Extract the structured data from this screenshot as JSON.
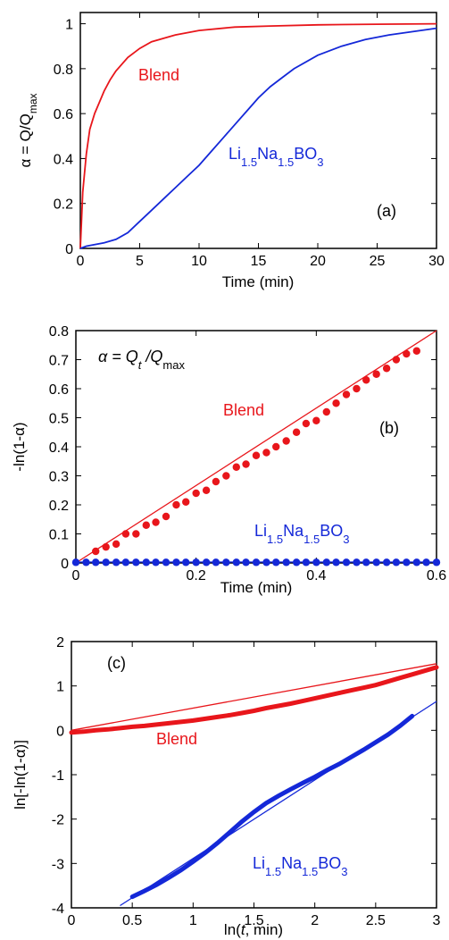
{
  "chart_data": [
    {
      "type": "line",
      "panel_label": "(a)",
      "xlabel": "Time (min)",
      "ylabel_parts": [
        "α = Q/Q",
        "max"
      ],
      "xlim": [
        0,
        30
      ],
      "ylim": [
        0,
        1.05
      ],
      "xticks": [
        "0",
        "5",
        "10",
        "15",
        "20",
        "25",
        "30"
      ],
      "xtick_values": [
        0,
        5,
        10,
        15,
        20,
        25,
        30
      ],
      "yticks": [
        "0",
        "0.2",
        "0.4",
        "0.6",
        "0.8",
        "1"
      ],
      "ytick_values": [
        0,
        0.2,
        0.4,
        0.6,
        0.8,
        1
      ],
      "colors": {
        "blend": "#e8161b",
        "li": "#1428d8"
      },
      "annotations": {
        "blend": "Blend",
        "li": {
          "a": "Li",
          "b": "1.5",
          "c": "Na",
          "d": "1.5",
          "e": "BO",
          "f": "3"
        }
      },
      "series": [
        {
          "x": [
            0,
            0.2,
            0.5,
            0.8,
            1.2,
            1.6,
            2,
            2.5,
            3,
            4,
            5,
            6,
            8,
            10,
            13,
            16,
            20,
            25,
            30
          ],
          "y": [
            0,
            0.25,
            0.42,
            0.53,
            0.6,
            0.65,
            0.7,
            0.75,
            0.79,
            0.85,
            0.89,
            0.92,
            0.95,
            0.97,
            0.985,
            0.99,
            0.995,
            0.998,
            1.0
          ]
        },
        {
          "x": [
            0,
            0.5,
            1,
            2,
            3,
            4,
            5,
            6,
            7,
            8,
            9,
            10,
            11,
            12,
            13,
            14,
            15,
            16,
            17,
            18,
            20,
            22,
            24,
            26,
            28,
            30
          ],
          "y": [
            0,
            0.01,
            0.015,
            0.025,
            0.04,
            0.07,
            0.12,
            0.17,
            0.22,
            0.27,
            0.32,
            0.37,
            0.43,
            0.49,
            0.55,
            0.61,
            0.67,
            0.72,
            0.76,
            0.8,
            0.86,
            0.9,
            0.93,
            0.95,
            0.965,
            0.98
          ]
        }
      ]
    },
    {
      "type": "scatter",
      "panel_label": "(b)",
      "xlabel": "Time (min)",
      "ylabel": "-ln(1-α)",
      "equation": {
        "a": "α = Q",
        "b": "t",
        "c": " /Q",
        "d": "max"
      },
      "xlim": [
        0,
        0.6
      ],
      "ylim": [
        0,
        0.8
      ],
      "xticks": [
        "0",
        "0.2",
        "0.4",
        "0.6"
      ],
      "xtick_values": [
        0,
        0.2,
        0.4,
        0.6
      ],
      "yticks": [
        "0",
        "0.1",
        "0.2",
        "0.3",
        "0.4",
        "0.5",
        "0.6",
        "0.7",
        "0.8"
      ],
      "ytick_values": [
        0,
        0.1,
        0.2,
        0.3,
        0.4,
        0.5,
        0.6,
        0.7,
        0.8
      ],
      "colors": {
        "blend": "#e8161b",
        "li": "#1428d8"
      },
      "annotations": {
        "blend": "Blend",
        "li": {
          "a": "Li",
          "b": "1.5",
          "c": "Na",
          "d": "1.5",
          "e": "BO",
          "f": "3"
        }
      },
      "series": [
        {
          "x": [
            0.033,
            0.05,
            0.067,
            0.083,
            0.1,
            0.117,
            0.133,
            0.15,
            0.167,
            0.183,
            0.2,
            0.217,
            0.233,
            0.25,
            0.267,
            0.283,
            0.3,
            0.317,
            0.333,
            0.35,
            0.367,
            0.383,
            0.4,
            0.417,
            0.433,
            0.45,
            0.467,
            0.483,
            0.5,
            0.517,
            0.533,
            0.55,
            0.567
          ],
          "y": [
            0.04,
            0.055,
            0.065,
            0.1,
            0.1,
            0.13,
            0.14,
            0.16,
            0.2,
            0.21,
            0.24,
            0.25,
            0.28,
            0.3,
            0.33,
            0.34,
            0.37,
            0.38,
            0.4,
            0.42,
            0.45,
            0.48,
            0.49,
            0.52,
            0.55,
            0.58,
            0.6,
            0.63,
            0.65,
            0.67,
            0.7,
            0.72,
            0.73
          ]
        },
        {
          "x": [
            0,
            0.017,
            0.033,
            0.05,
            0.067,
            0.083,
            0.1,
            0.117,
            0.133,
            0.15,
            0.167,
            0.183,
            0.2,
            0.217,
            0.233,
            0.25,
            0.267,
            0.283,
            0.3,
            0.317,
            0.333,
            0.35,
            0.367,
            0.383,
            0.4,
            0.417,
            0.433,
            0.45,
            0.467,
            0.483,
            0.5,
            0.517,
            0.533,
            0.55,
            0.567,
            0.583,
            0.6
          ],
          "y": [
            0.002,
            0.002,
            0.002,
            0.002,
            0.002,
            0.002,
            0.002,
            0.002,
            0.002,
            0.002,
            0.002,
            0.002,
            0.002,
            0.002,
            0.002,
            0.002,
            0.002,
            0.002,
            0.002,
            0.002,
            0.002,
            0.002,
            0.002,
            0.002,
            0.002,
            0.002,
            0.002,
            0.002,
            0.002,
            0.002,
            0.002,
            0.002,
            0.002,
            0.002,
            0.002,
            0.002,
            0.002
          ]
        }
      ],
      "fits": [
        {
          "x": [
            0,
            0.6
          ],
          "y": [
            0,
            0.8
          ]
        },
        {
          "x": [
            0,
            0.6
          ],
          "y": [
            0.003,
            0.003
          ]
        }
      ]
    },
    {
      "type": "scatter",
      "panel_label": "(c)",
      "xlabel_parts": [
        "ln(",
        "t",
        ", min)"
      ],
      "ylabel": "ln[-ln(1-α)]",
      "xlim": [
        0,
        3
      ],
      "ylim": [
        -4,
        2
      ],
      "xticks": [
        "0",
        "0.5",
        "1",
        "1.5",
        "2",
        "2.5",
        "3"
      ],
      "xtick_values": [
        0,
        0.5,
        1,
        1.5,
        2,
        2.5,
        3
      ],
      "yticks": [
        "-4",
        "-3",
        "-2",
        "-1",
        "0",
        "1",
        "2"
      ],
      "ytick_values": [
        -4,
        -3,
        -2,
        -1,
        0,
        1,
        2
      ],
      "colors": {
        "blend": "#e8161b",
        "li": "#1428d8"
      },
      "annotations": {
        "blend": "Blend",
        "li": {
          "a": "Li",
          "b": "1.5",
          "c": "Na",
          "d": "1.5",
          "e": "BO",
          "f": "3"
        }
      },
      "series": [
        {
          "x": [
            0,
            0.1,
            0.2,
            0.3,
            0.4,
            0.5,
            0.6,
            0.7,
            0.8,
            0.9,
            1,
            1.1,
            1.2,
            1.3,
            1.4,
            1.5,
            1.6,
            1.7,
            1.8,
            1.9,
            2,
            2.1,
            2.2,
            2.3,
            2.4,
            2.5,
            2.6,
            2.7,
            2.8,
            2.9,
            3
          ],
          "y": [
            -0.05,
            -0.03,
            0,
            0.02,
            0.05,
            0.08,
            0.1,
            0.13,
            0.16,
            0.19,
            0.22,
            0.26,
            0.3,
            0.34,
            0.39,
            0.44,
            0.5,
            0.55,
            0.6,
            0.66,
            0.72,
            0.78,
            0.84,
            0.9,
            0.96,
            1.02,
            1.1,
            1.18,
            1.26,
            1.34,
            1.42
          ]
        },
        {
          "x": [
            0.5,
            0.6,
            0.7,
            0.8,
            0.9,
            1,
            1.1,
            1.2,
            1.3,
            1.4,
            1.5,
            1.6,
            1.7,
            1.8,
            1.9,
            2,
            2.1,
            2.2,
            2.3,
            2.4,
            2.5,
            2.6,
            2.7,
            2.8
          ],
          "y": [
            -3.75,
            -3.62,
            -3.48,
            -3.32,
            -3.15,
            -2.96,
            -2.76,
            -2.54,
            -2.3,
            -2.06,
            -1.84,
            -1.64,
            -1.48,
            -1.33,
            -1.19,
            -1.05,
            -0.9,
            -0.76,
            -0.6,
            -0.44,
            -0.27,
            -0.1,
            0.1,
            0.32
          ]
        }
      ],
      "fits": [
        {
          "x": [
            0,
            3
          ],
          "y": [
            0,
            1.5
          ]
        },
        {
          "x": [
            0.4,
            3
          ],
          "y": [
            -3.95,
            0.65
          ]
        }
      ]
    }
  ]
}
